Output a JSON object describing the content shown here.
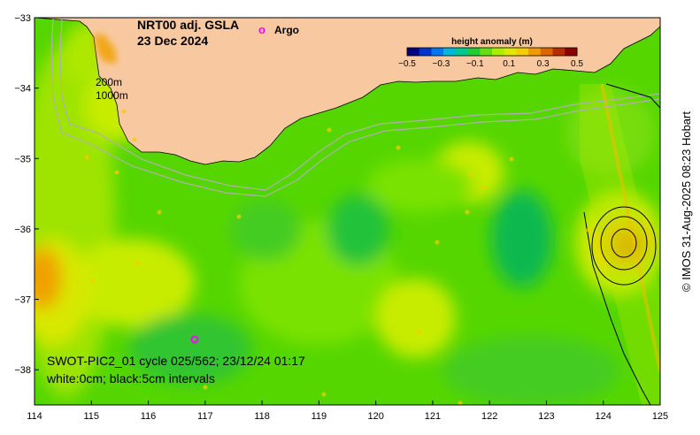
{
  "title": {
    "product": "NRT00 adj. GSLA",
    "date": "23 Dec 2024"
  },
  "legend": {
    "argo_symbol": "o",
    "argo_label": "Argo",
    "argo_color": "#ff00ff"
  },
  "colorbar": {
    "title": "height anomaly (m)",
    "ticks": [
      "−0.5",
      "−0.3",
      "−0.1",
      "0.1",
      "0.3",
      "0.5"
    ],
    "colors": [
      "#000080",
      "#0033cc",
      "#0077ee",
      "#00b8d8",
      "#00c890",
      "#22cc33",
      "#66dd11",
      "#aaee00",
      "#e0e800",
      "#f5cc00",
      "#f09a00",
      "#dd6600",
      "#b82c00",
      "#8b0000"
    ]
  },
  "isobaths": {
    "label_200": "200m",
    "label_1000": "1000m"
  },
  "swot_info": {
    "line1": "SWOT-PIC2_01 cycle 025/562; 23/12/24 01:17",
    "line2": "white:0cm; black:5cm intervals"
  },
  "axes": {
    "x_ticks": [
      "114",
      "115",
      "116",
      "117",
      "118",
      "119",
      "120",
      "121",
      "122",
      "123",
      "124",
      "125"
    ],
    "y_ticks": [
      "−33",
      "−34",
      "−35",
      "−36",
      "−37",
      "−38"
    ],
    "x_range": [
      114,
      125
    ],
    "y_range": [
      -38.5,
      -33
    ]
  },
  "credit": "© IMOS 31-Aug-2025 08:23 Hobart",
  "colors": {
    "land": "#f8c9a0",
    "sea_base": "#55d600",
    "low_green": "#11b950",
    "mid_green": "#7ae200",
    "yellow": "#c8ec00",
    "orange": "#f0a000",
    "argo": "#ff00ff"
  }
}
